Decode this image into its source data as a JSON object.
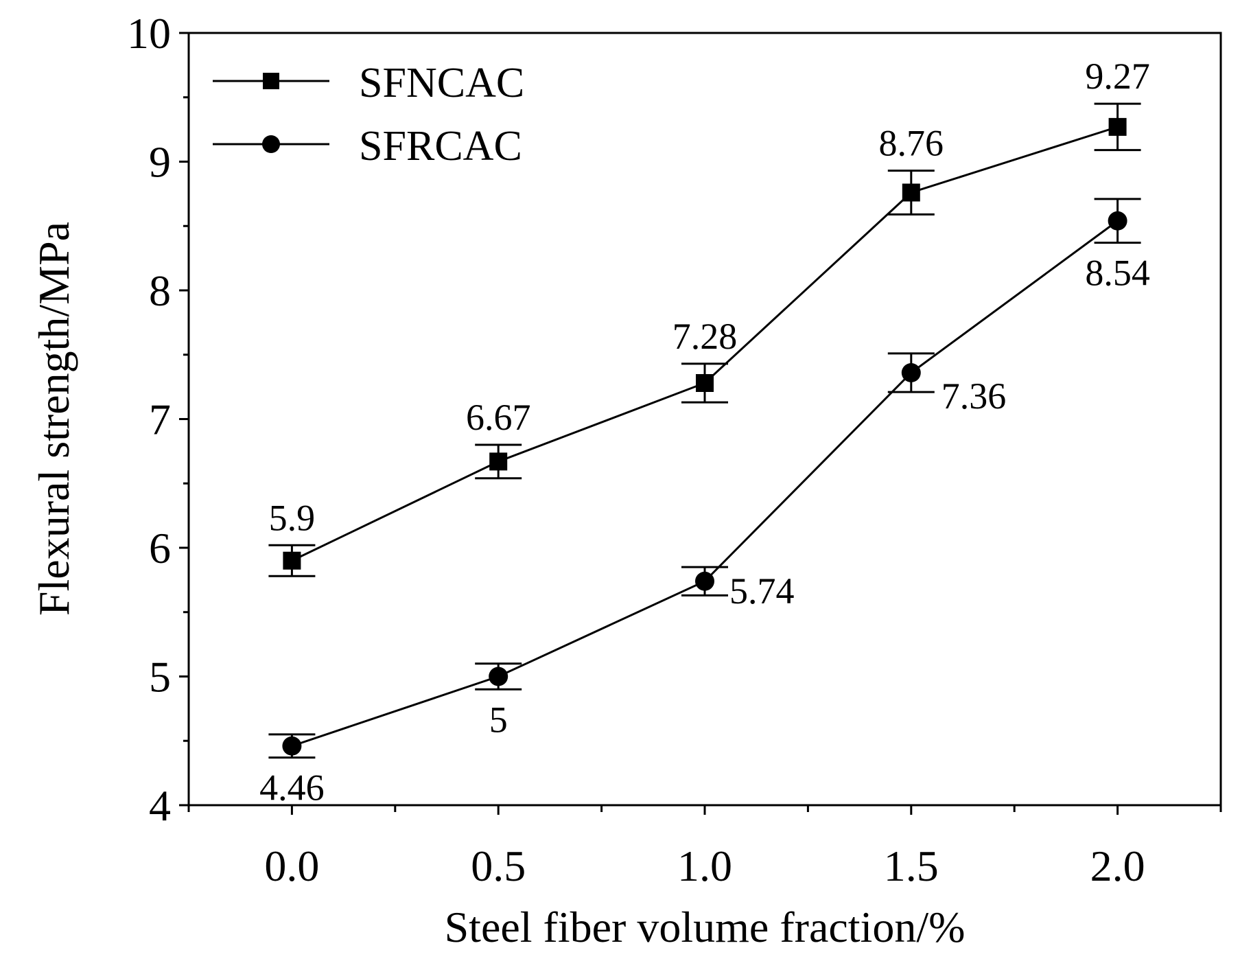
{
  "chart_data": {
    "type": "line",
    "title": "",
    "xlabel": "Steel fiber volume fraction/%",
    "ylabel": "Flexural strength/MPa",
    "x": [
      0.0,
      0.5,
      1.0,
      1.5,
      2.0
    ],
    "x_tick_labels": [
      "0.0",
      "0.5",
      "1.0",
      "1.5",
      "2.0"
    ],
    "xlim": [
      -0.25,
      2.25
    ],
    "ylim": [
      4,
      10
    ],
    "y_ticks": [
      4,
      5,
      6,
      7,
      8,
      9,
      10
    ],
    "y_tick_labels": [
      "4",
      "5",
      "6",
      "7",
      "8",
      "9",
      "10"
    ],
    "grid": false,
    "legend_position": "top-left",
    "series": [
      {
        "name": "SFNCAC",
        "marker": "square",
        "values": [
          5.9,
          6.67,
          7.28,
          8.76,
          9.27
        ],
        "labels": [
          "5.9",
          "6.67",
          "7.28",
          "8.76",
          "9.27"
        ],
        "error": [
          0.12,
          0.13,
          0.15,
          0.17,
          0.18
        ],
        "label_position": "above"
      },
      {
        "name": "SFRCAC",
        "marker": "circle",
        "values": [
          4.46,
          5.0,
          5.74,
          7.36,
          8.54
        ],
        "labels": [
          "4.46",
          "5",
          "5.74",
          "7.36",
          "8.54"
        ],
        "error": [
          0.09,
          0.1,
          0.11,
          0.15,
          0.17
        ],
        "label_position": [
          "below",
          "below",
          "right",
          "below-right",
          "below"
        ]
      }
    ]
  }
}
